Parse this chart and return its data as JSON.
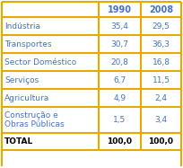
{
  "rows": [
    [
      "Indústria",
      "35,4",
      "29,5"
    ],
    [
      "Transportes",
      "30,7",
      "36,3"
    ],
    [
      "Sector Doméstico",
      "20,8",
      "16,8"
    ],
    [
      "Serviços",
      "6,7",
      "11,5"
    ],
    [
      "Agricultura",
      "4,9",
      "2,4"
    ],
    [
      "Construção e\nObras Públicas",
      "1,5",
      "3,4"
    ],
    [
      "TOTAL",
      "100,0",
      "100,0"
    ]
  ],
  "col_headers": [
    "",
    "1990",
    "2008"
  ],
  "border_color": "#E8A800",
  "text_color": "#4472C4",
  "total_text_color": "#000000",
  "bg_color": "#ffffff",
  "font_size": 6.5,
  "header_font_size": 7.0
}
